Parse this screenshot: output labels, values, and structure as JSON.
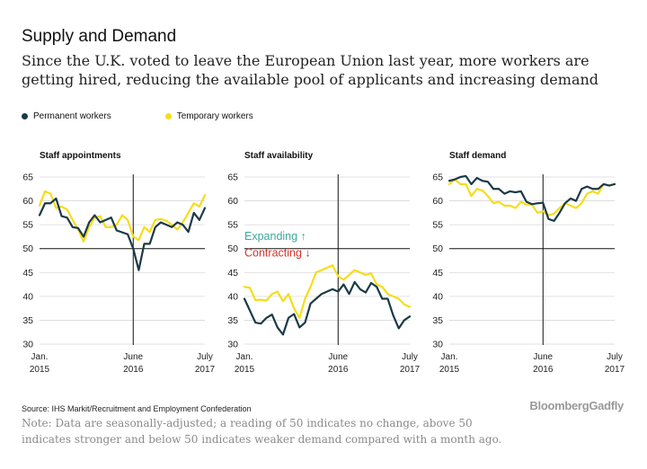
{
  "header": {
    "title": "Supply and Demand",
    "subtitle": "Since the U.K. voted to leave the European Union last year, more workers are getting hired, reducing the available pool of applicants and increasing demand"
  },
  "legend": [
    {
      "name": "Permanent workers",
      "color": "#1b3a47"
    },
    {
      "name": "Temporary workers",
      "color": "#f5dd1a"
    }
  ],
  "footer": {
    "source": "Source: IHS Markit/Recruitment and Employment Confederation",
    "brand": "BloombergGadfly",
    "note": "Note: Data are seasonally-adjusted; a reading of 50 indicates no change, above 50 indicates stronger and below 50 indicates weaker demand compared with a month ago."
  },
  "chart_data": [
    {
      "type": "line",
      "title": "Staff appointments",
      "ylim": [
        30,
        65
      ],
      "yticks": [
        30,
        35,
        40,
        45,
        50,
        55,
        60,
        65
      ],
      "xticks": [
        {
          "x": 0,
          "line1": "Jan.",
          "line2": "2015"
        },
        {
          "x": 17,
          "line1": "June",
          "line2": "2016"
        },
        {
          "x": 30,
          "line1": "July",
          "line2": "2017"
        }
      ],
      "xrange": [
        0,
        30
      ],
      "vline_x": 17,
      "baseline": 50,
      "annotations": [],
      "series": [
        {
          "name": "Permanent workers",
          "color": "#1b3a47",
          "values": [
            57,
            59.5,
            59.5,
            60.5,
            56.8,
            56.5,
            54.5,
            54.3,
            52.5,
            55.5,
            57,
            55.5,
            56,
            56.5,
            53.8,
            53.4,
            53,
            50,
            45.5,
            51,
            51,
            54.5,
            55.5,
            55,
            54.5,
            55.5,
            55,
            53.5,
            57.5,
            56,
            58.5
          ]
        },
        {
          "name": "Temporary workers",
          "color": "#f5dd1a",
          "values": [
            59,
            62,
            61.5,
            58.5,
            58.8,
            58.2,
            56,
            54,
            51.5,
            54.5,
            56.5,
            56.8,
            54.5,
            54.5,
            55,
            57,
            56,
            52.5,
            51.8,
            54.5,
            53.5,
            56,
            56.2,
            55.8,
            55,
            54,
            55.5,
            57.5,
            59.5,
            58.8,
            61.2
          ]
        }
      ]
    },
    {
      "type": "line",
      "title": "Staff availability",
      "ylim": [
        30,
        65
      ],
      "yticks": [
        30,
        35,
        40,
        45,
        50,
        55,
        60,
        65
      ],
      "xticks": [
        {
          "x": 0,
          "line1": "Jan.",
          "line2": "2015"
        },
        {
          "x": 17,
          "line1": "June",
          "line2": "2016"
        },
        {
          "x": 30,
          "line1": "July",
          "line2": "2017"
        }
      ],
      "xrange": [
        0,
        30
      ],
      "vline_x": 17,
      "baseline": 50,
      "annotations": [
        {
          "text": "Expanding ↑",
          "color": "#3aa89b",
          "y": 51.6
        },
        {
          "text": "Contracting ↓",
          "color": "#d0342c",
          "y": 48.2
        }
      ],
      "series": [
        {
          "name": "Permanent workers",
          "color": "#1b3a47",
          "values": [
            39.5,
            37,
            34.5,
            34.3,
            35.5,
            36.2,
            33.5,
            32,
            35.5,
            36.3,
            33.5,
            34.5,
            38.5,
            39.5,
            40.5,
            41,
            41.5,
            41,
            42.5,
            40.5,
            43,
            41.5,
            40.8,
            42.8,
            42,
            39.5,
            39.5,
            36,
            33.3,
            35,
            35.8
          ]
        },
        {
          "name": "Temporary workers",
          "color": "#f5dd1a",
          "values": [
            42,
            41.8,
            39.2,
            39.3,
            39.1,
            40.5,
            41,
            39,
            40.5,
            37.5,
            35.5,
            39.5,
            42,
            45,
            45.5,
            46,
            46.5,
            44.2,
            43.5,
            44.5,
            45.5,
            45,
            44.5,
            44.8,
            42.5,
            42,
            40.5,
            40,
            39.5,
            38.3,
            37.8
          ]
        }
      ]
    },
    {
      "type": "line",
      "title": "Staff demand",
      "ylim": [
        30,
        65
      ],
      "yticks": [
        30,
        35,
        40,
        45,
        50,
        55,
        60,
        65
      ],
      "xticks": [
        {
          "x": 0,
          "line1": "Jan.",
          "line2": "2015"
        },
        {
          "x": 17,
          "line1": "June",
          "line2": "2016"
        },
        {
          "x": 30,
          "line1": "July",
          "line2": "2017"
        }
      ],
      "xrange": [
        0,
        30
      ],
      "vline_x": 17,
      "baseline": 50,
      "annotations": [],
      "series": [
        {
          "name": "Permanent workers",
          "color": "#1b3a47",
          "values": [
            64.2,
            64.5,
            65,
            65.2,
            63.5,
            64.8,
            64.2,
            64,
            62.5,
            62.5,
            61.5,
            62,
            61.8,
            62,
            59.8,
            59.3,
            59.5,
            59.6,
            56.2,
            55.8,
            57.5,
            59.5,
            60.5,
            60,
            62.5,
            63,
            62.5,
            62.5,
            63.5,
            63.2,
            63.5
          ]
        },
        {
          "name": "Temporary workers",
          "color": "#f5dd1a",
          "values": [
            63.5,
            64.5,
            63.5,
            63.5,
            61,
            62.5,
            62.2,
            61,
            59.5,
            59.8,
            59,
            59,
            58.5,
            59.8,
            59.2,
            59.2,
            57.5,
            57.8,
            57,
            57.3,
            58.5,
            59.5,
            59,
            58.5,
            59.5,
            61.5,
            62,
            61.5,
            63.5,
            63.2,
            63.5
          ]
        }
      ]
    }
  ]
}
